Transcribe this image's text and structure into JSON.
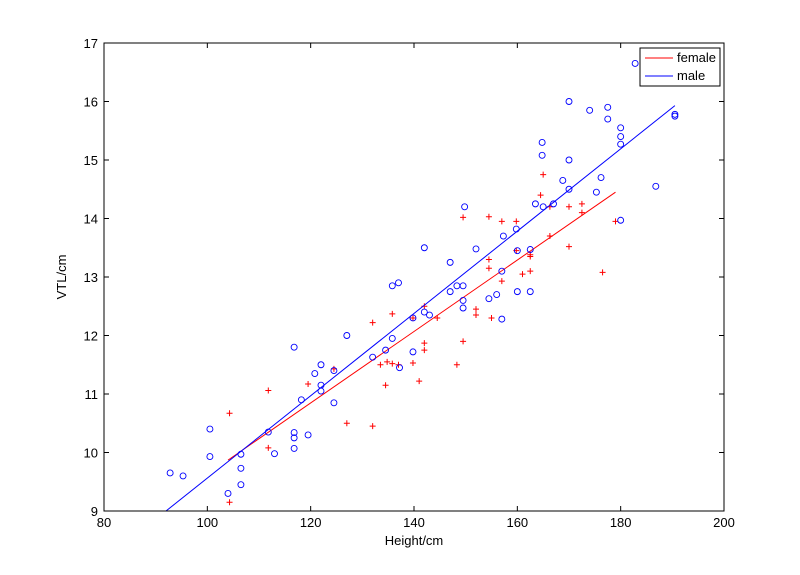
{
  "chart_data": {
    "type": "scatter",
    "title": "",
    "xlabel": "Height/cm",
    "ylabel": "VTL/cm",
    "xlim": [
      80,
      200
    ],
    "ylim": [
      9,
      17
    ],
    "xticks": [
      80,
      100,
      120,
      140,
      160,
      180,
      200
    ],
    "yticks": [
      9,
      10,
      11,
      12,
      13,
      14,
      15,
      16,
      17
    ],
    "grid": false,
    "legend_position": "top-right",
    "series": [
      {
        "name": "female",
        "color": "#ff0000",
        "marker": "+",
        "points": [
          [
            104.3,
            10.67
          ],
          [
            104.3,
            9.15
          ],
          [
            111.8,
            11.06
          ],
          [
            111.8,
            10.08
          ],
          [
            119.5,
            11.17
          ],
          [
            124.5,
            11.43
          ],
          [
            127,
            10.5
          ],
          [
            132,
            12.22
          ],
          [
            132,
            10.45
          ],
          [
            133.5,
            11.5
          ],
          [
            134.5,
            11.15
          ],
          [
            134.8,
            11.55
          ],
          [
            135.8,
            12.37
          ],
          [
            135.8,
            11.52
          ],
          [
            137,
            11.5
          ],
          [
            139.8,
            12.3
          ],
          [
            139.8,
            11.53
          ],
          [
            141,
            11.22
          ],
          [
            142,
            11.87
          ],
          [
            142,
            11.75
          ],
          [
            142,
            12.5
          ],
          [
            144.5,
            12.3
          ],
          [
            148.3,
            11.5
          ],
          [
            149.5,
            14.02
          ],
          [
            149.5,
            11.9
          ],
          [
            152,
            12.35
          ],
          [
            152,
            12.45
          ],
          [
            154.5,
            14.03
          ],
          [
            154.5,
            13.3
          ],
          [
            154.5,
            13.15
          ],
          [
            155,
            12.3
          ],
          [
            157,
            13.95
          ],
          [
            157,
            12.93
          ],
          [
            159.8,
            13.95
          ],
          [
            159.8,
            13.45
          ],
          [
            161,
            13.05
          ],
          [
            162.5,
            13.35
          ],
          [
            162.5,
            13.38
          ],
          [
            162.5,
            13.1
          ],
          [
            164.5,
            14.4
          ],
          [
            165,
            14.75
          ],
          [
            166.3,
            14.2
          ],
          [
            166.3,
            13.7
          ],
          [
            170,
            14.2
          ],
          [
            170,
            13.52
          ],
          [
            172.5,
            14.25
          ],
          [
            172.5,
            14.1
          ],
          [
            176.5,
            13.08
          ],
          [
            179,
            13.95
          ]
        ],
        "fit_line": [
          [
            104,
            9.87
          ],
          [
            179,
            14.45
          ]
        ]
      },
      {
        "name": "male",
        "color": "#0000ff",
        "marker": "o",
        "points": [
          [
            92.8,
            9.65
          ],
          [
            95.3,
            9.6
          ],
          [
            100.5,
            10.4
          ],
          [
            100.5,
            9.93
          ],
          [
            104,
            9.3
          ],
          [
            106.5,
            9.45
          ],
          [
            106.5,
            9.73
          ],
          [
            106.5,
            9.97
          ],
          [
            111.8,
            10.35
          ],
          [
            113,
            9.98
          ],
          [
            116.8,
            10.07
          ],
          [
            116.8,
            10.25
          ],
          [
            116.8,
            10.34
          ],
          [
            116.8,
            11.8
          ],
          [
            118.2,
            10.9
          ],
          [
            119.5,
            10.3
          ],
          [
            120.8,
            11.35
          ],
          [
            122,
            11.5
          ],
          [
            122,
            11.15
          ],
          [
            122,
            11.05
          ],
          [
            124.5,
            11.4
          ],
          [
            124.5,
            10.85
          ],
          [
            127,
            12.0
          ],
          [
            132,
            11.63
          ],
          [
            134.5,
            11.75
          ],
          [
            135.8,
            11.95
          ],
          [
            135.8,
            12.85
          ],
          [
            137,
            12.9
          ],
          [
            137.2,
            11.45
          ],
          [
            139.8,
            11.72
          ],
          [
            139.8,
            12.3
          ],
          [
            142,
            13.5
          ],
          [
            142,
            12.4
          ],
          [
            143,
            12.35
          ],
          [
            147,
            13.25
          ],
          [
            147,
            12.75
          ],
          [
            148.3,
            12.85
          ],
          [
            149.5,
            12.6
          ],
          [
            149.5,
            12.47
          ],
          [
            149.5,
            12.85
          ],
          [
            149.8,
            14.2
          ],
          [
            152,
            13.48
          ],
          [
            154.5,
            12.63
          ],
          [
            156,
            12.7
          ],
          [
            157,
            13.1
          ],
          [
            157,
            12.28
          ],
          [
            157.3,
            13.7
          ],
          [
            159.8,
            13.82
          ],
          [
            160,
            13.45
          ],
          [
            160,
            12.75
          ],
          [
            162.5,
            13.47
          ],
          [
            162.5,
            12.75
          ],
          [
            163.5,
            14.25
          ],
          [
            164.8,
            15.3
          ],
          [
            164.8,
            15.08
          ],
          [
            165,
            14.2
          ],
          [
            167,
            14.25
          ],
          [
            168.8,
            14.65
          ],
          [
            170,
            16.0
          ],
          [
            170,
            15.0
          ],
          [
            170,
            14.5
          ],
          [
            174,
            15.85
          ],
          [
            175.3,
            14.45
          ],
          [
            176.2,
            14.7
          ],
          [
            177.5,
            15.9
          ],
          [
            177.5,
            15.7
          ],
          [
            180,
            15.55
          ],
          [
            180,
            15.4
          ],
          [
            180,
            15.27
          ],
          [
            180,
            13.97
          ],
          [
            186.8,
            14.55
          ],
          [
            182.8,
            16.65
          ],
          [
            190.5,
            15.75
          ],
          [
            190.5,
            15.78
          ]
        ],
        "fit_line": [
          [
            92,
            9.0
          ],
          [
            190.5,
            15.93
          ]
        ]
      }
    ]
  }
}
